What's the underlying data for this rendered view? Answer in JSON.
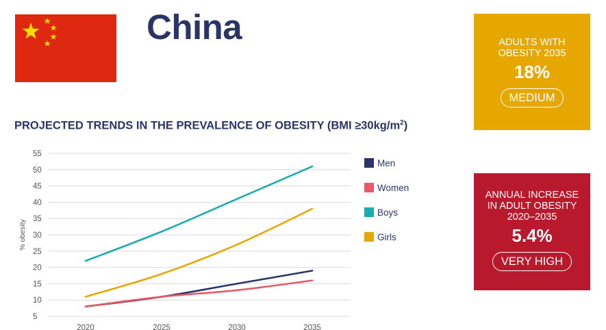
{
  "header": {
    "country": "China"
  },
  "colors": {
    "navy": "#2b3467",
    "flag_red": "#de2910",
    "flag_star": "#ffde00",
    "card_yellow": "#e6a800",
    "card_red": "#b8192c"
  },
  "cards": [
    {
      "label_line1": "ADULTS WITH",
      "label_line2": "OBESITY 2035",
      "label_line3": "",
      "value": "18%",
      "rating": "MEDIUM"
    },
    {
      "label_line1": "ANNUAL INCREASE",
      "label_line2": "IN ADULT OBESITY",
      "label_line3": "2020–2035",
      "value": "5.4%",
      "rating": "VERY HIGH"
    }
  ],
  "chart_data": {
    "type": "line",
    "title": "PROJECTED TRENDS IN THE PREVALENCE OF OBESITY (BMI ≥30kg/m",
    "title_sup": "2",
    "title_end": ")",
    "xlabel": "",
    "ylabel": "% obesity",
    "x": [
      2020,
      2025,
      2030,
      2035
    ],
    "x_tick_labels": [
      "2020",
      "2025",
      "2030",
      "2035"
    ],
    "y_ticks": [
      5,
      10,
      15,
      20,
      25,
      30,
      35,
      40,
      45,
      50,
      55
    ],
    "ylim": [
      5,
      55
    ],
    "grid": true,
    "legend_position": "right",
    "series": [
      {
        "name": "Men",
        "color": "#2b3467",
        "values": [
          8,
          11,
          15,
          19
        ]
      },
      {
        "name": "Women",
        "color": "#e8596a",
        "values": [
          8,
          11,
          13,
          16
        ]
      },
      {
        "name": "Boys",
        "color": "#1aacb0",
        "values": [
          22,
          31,
          41,
          51
        ]
      },
      {
        "name": "Girls",
        "color": "#e6a800",
        "values": [
          11,
          18,
          27,
          38
        ]
      }
    ]
  }
}
